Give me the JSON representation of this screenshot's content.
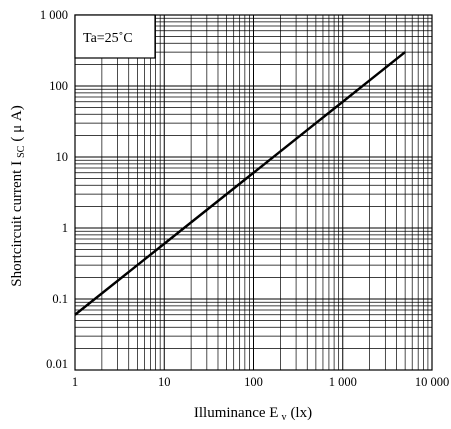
{
  "chart_data": {
    "type": "line",
    "xscale": "log",
    "yscale": "log",
    "xlim": [
      1,
      10000
    ],
    "ylim": [
      0.01,
      1000
    ],
    "xticks": [
      1,
      10,
      100,
      1000,
      10000
    ],
    "xtick_labels": [
      "1",
      "10",
      "100",
      "1 000",
      "10 000"
    ],
    "yticks": [
      0.01,
      0.1,
      1,
      10,
      100,
      1000
    ],
    "ytick_labels": [
      "0.01",
      "0.1",
      "1",
      "10",
      "100",
      "1 000"
    ],
    "xlabel": {
      "main": "Illuminance E",
      "sub": "v",
      "unit": "(lx)"
    },
    "ylabel": {
      "main": "Shortcircuit current I",
      "sub": "SC",
      "unit": "( μ A)"
    },
    "grid": true,
    "grid_minor": true,
    "annotations": [
      "Ta=25˚C"
    ],
    "line_color": "#000000",
    "grid_color": "#000000",
    "series": [
      {
        "x": [
          1,
          10,
          100,
          1000,
          5000
        ],
        "y": [
          0.06,
          0.6,
          6,
          60,
          300
        ]
      }
    ]
  }
}
